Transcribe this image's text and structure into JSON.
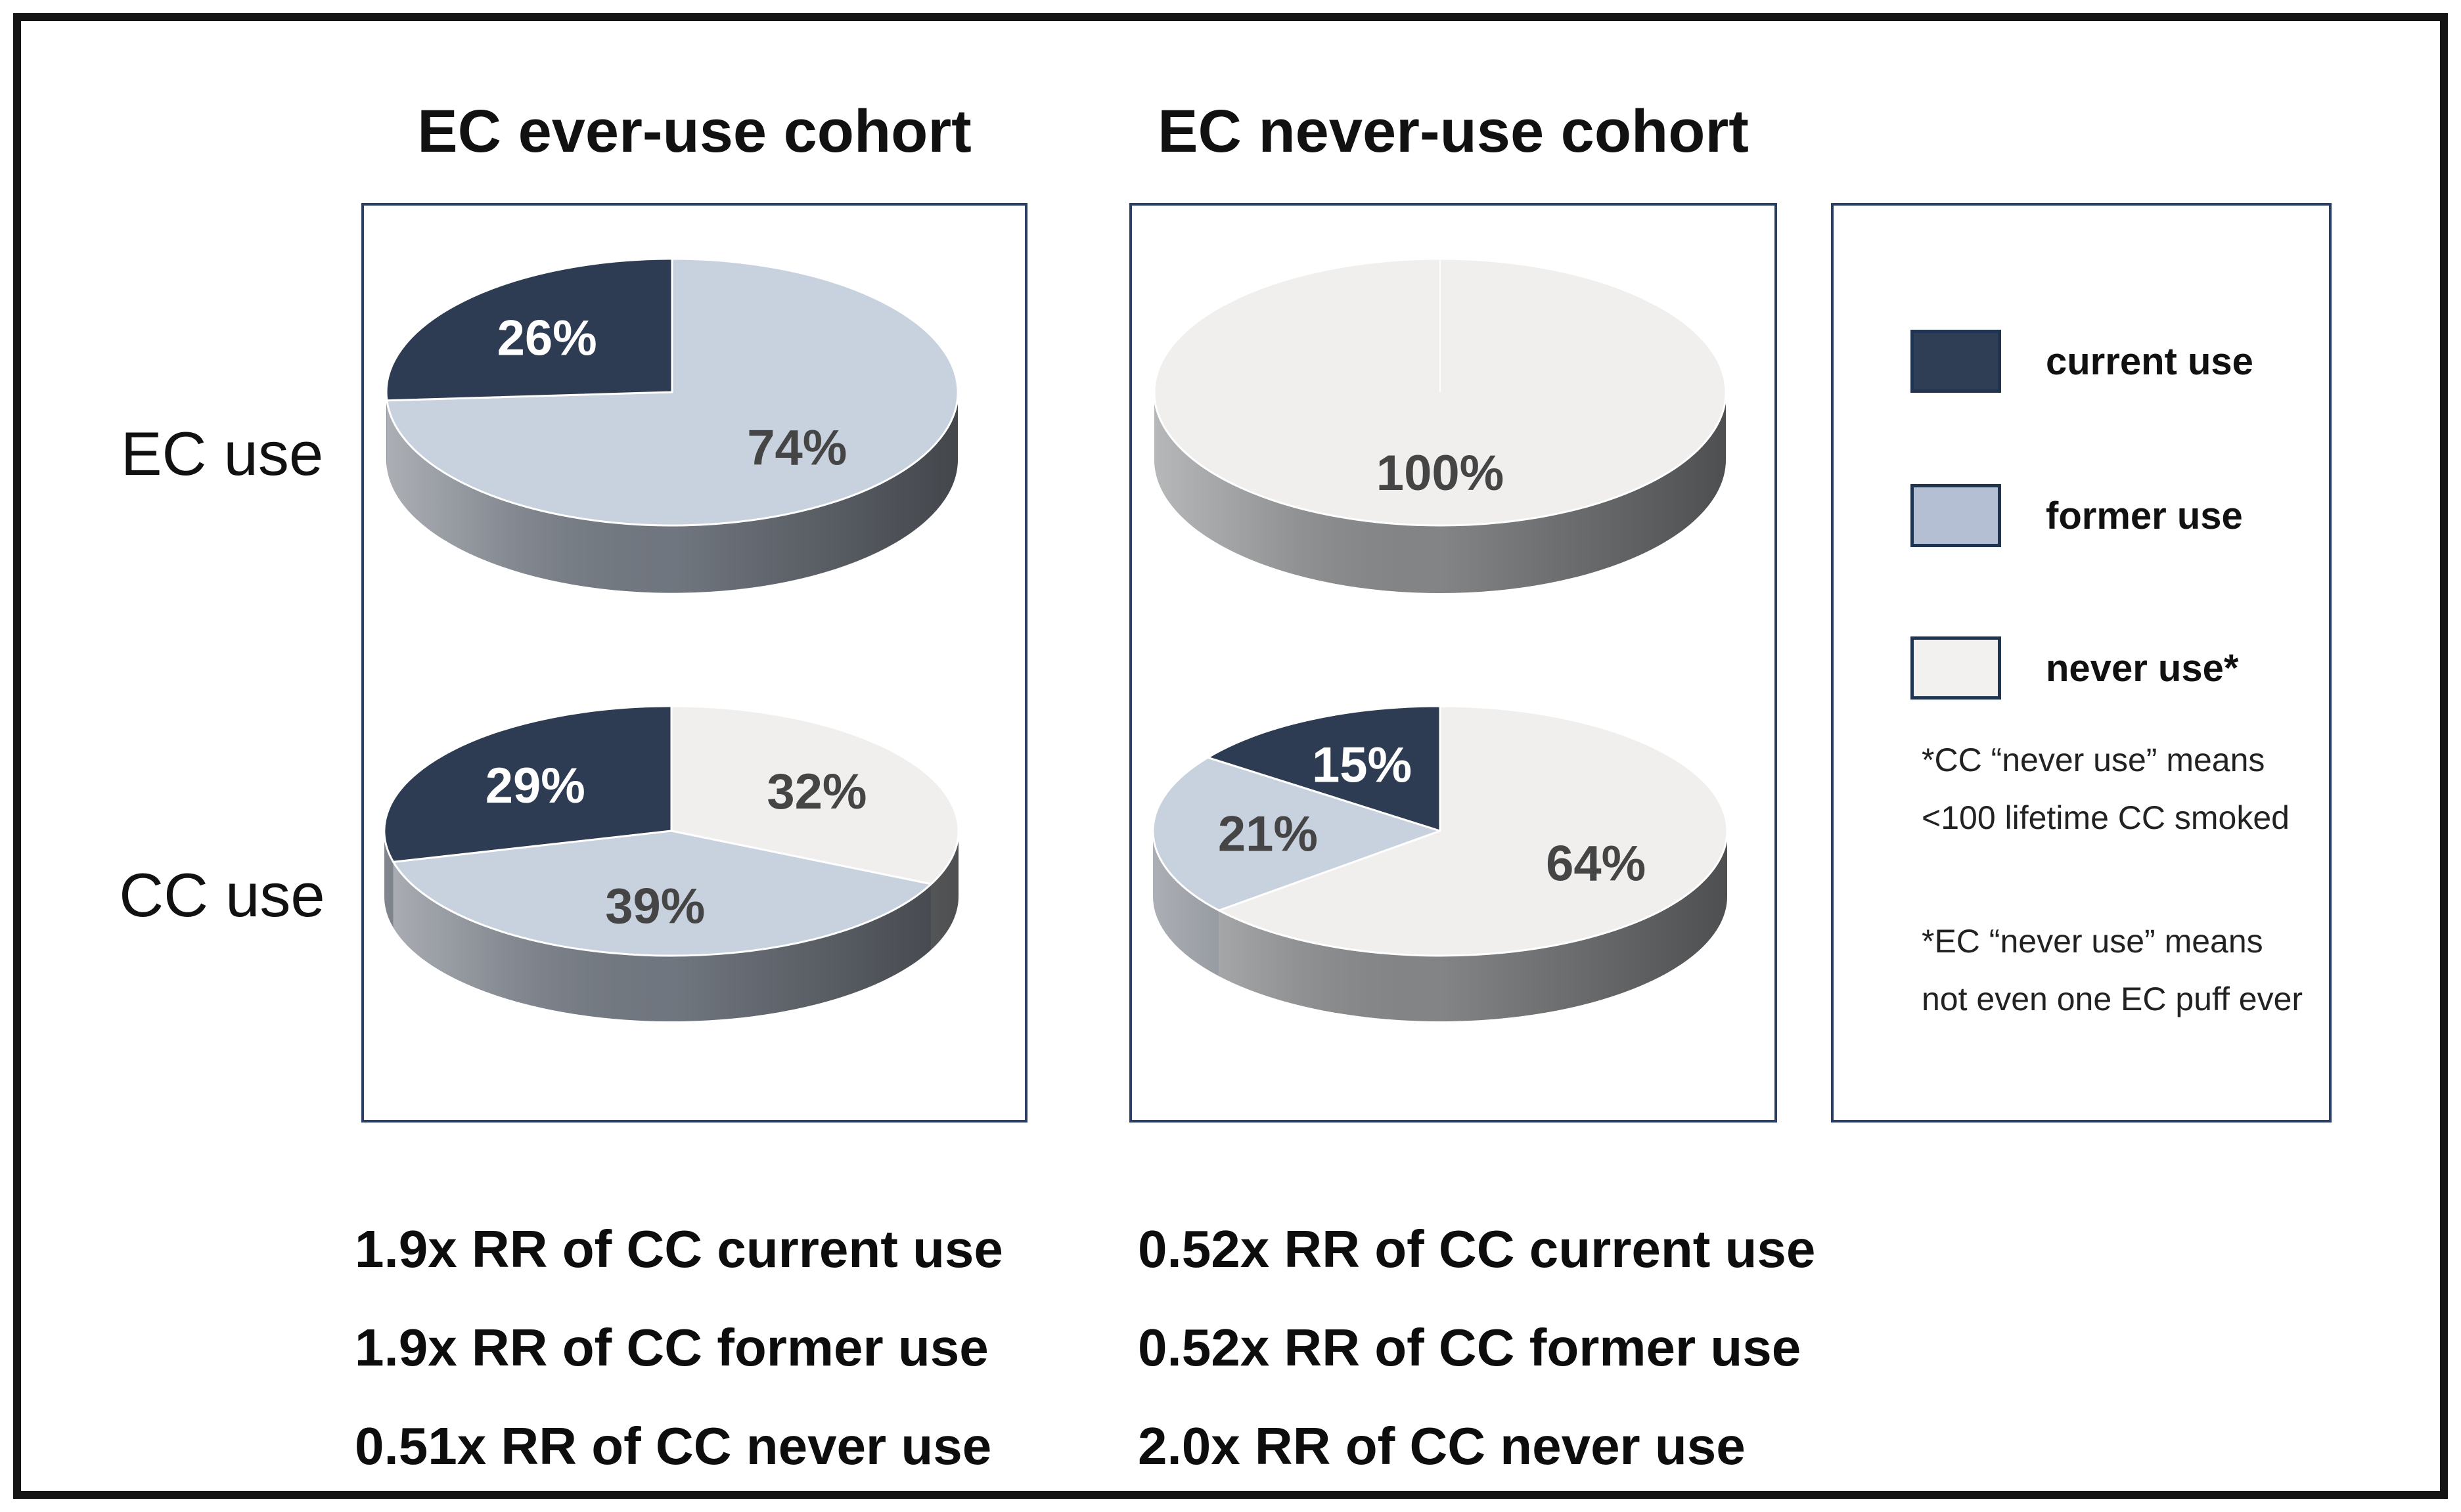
{
  "figure": {
    "titles": {
      "left": "EC ever-use cohort",
      "right": "EC never-use cohort"
    },
    "row_labels": {
      "top": "EC use",
      "bottom": "CC use"
    }
  },
  "legend": {
    "items": [
      {
        "label": "current use",
        "color": "#2f3e55"
      },
      {
        "label": "former use",
        "color": "#b5bfd3"
      },
      {
        "label": "never use*",
        "color": "#f2f1ef"
      }
    ],
    "footnotes": [
      "*CC “never use” means\n<100 lifetime CC smoked",
      "*EC “never use” means\nnot even one EC puff ever"
    ]
  },
  "annotations": {
    "left": [
      "1.9x RR of CC current use",
      "1.9x RR of CC former use",
      "0.51x RR of CC never use"
    ],
    "right": [
      "0.52x RR of CC current use",
      "0.52x RR of CC former use",
      "2.0x RR of CC never use"
    ]
  },
  "series_colors": {
    "current use": "#2d3c52",
    "former use": "#c8d1de",
    "never use*": "#f0efee"
  },
  "chart_data": [
    {
      "id": "ec-ever-ec-use",
      "type": "pie",
      "cohort": "EC ever-use cohort",
      "row": "EC use",
      "slices": [
        {
          "category": "current use",
          "value": 26
        },
        {
          "category": "former use",
          "value": 74
        },
        {
          "category": "never use*",
          "value": 0
        }
      ],
      "label_format": "percent"
    },
    {
      "id": "ec-never-ec-use",
      "type": "pie",
      "cohort": "EC never-use cohort",
      "row": "EC use",
      "slices": [
        {
          "category": "current use",
          "value": 0
        },
        {
          "category": "former use",
          "value": 0
        },
        {
          "category": "never use*",
          "value": 100
        }
      ],
      "label_format": "percent"
    },
    {
      "id": "ec-ever-cc-use",
      "type": "pie",
      "cohort": "EC ever-use cohort",
      "row": "CC use",
      "slices": [
        {
          "category": "current use",
          "value": 29
        },
        {
          "category": "former use",
          "value": 39
        },
        {
          "category": "never use*",
          "value": 32
        }
      ],
      "label_format": "percent"
    },
    {
      "id": "ec-never-cc-use",
      "type": "pie",
      "cohort": "EC never-use cohort",
      "row": "CC use",
      "slices": [
        {
          "category": "current use",
          "value": 15
        },
        {
          "category": "former use",
          "value": 21
        },
        {
          "category": "never use*",
          "value": 64
        }
      ],
      "label_format": "percent"
    }
  ]
}
